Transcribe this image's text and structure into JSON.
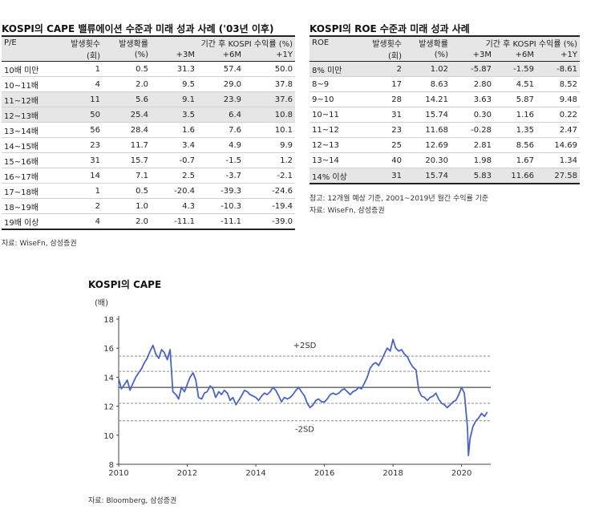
{
  "left_table": {
    "title": "KOSPI의 CAPE 밸류에이션 수준과 미래 성과 사례 ('03년 이후)",
    "headers": {
      "c1": "P/E",
      "c2": "발생횟수",
      "c3": "발생확률",
      "c4": "기간 후 KOSPI 수익률 (%)"
    },
    "subheaders": {
      "c2": "(회)",
      "c3": "(%)",
      "c4": "+3M",
      "c5": "+6M",
      "c6": "+1Y"
    },
    "rows": [
      {
        "label": "10배 미만",
        "count": "1",
        "prob": "0.5",
        "m3": "31.3",
        "m6": "57.4",
        "y1": "50.0",
        "hl": false
      },
      {
        "label": "10~11배",
        "count": "4",
        "prob": "2.0",
        "m3": "9.5",
        "m6": "29.0",
        "y1": "37.8",
        "hl": false
      },
      {
        "label": "11~12배",
        "count": "11",
        "prob": "5.6",
        "m3": "9.1",
        "m6": "23.9",
        "y1": "37.6",
        "hl": true
      },
      {
        "label": "12~13배",
        "count": "50",
        "prob": "25.4",
        "m3": "3.5",
        "m6": "6.4",
        "y1": "10.8",
        "hl": true
      },
      {
        "label": "13~14배",
        "count": "56",
        "prob": "28.4",
        "m3": "1.6",
        "m6": "7.6",
        "y1": "10.1",
        "hl": false
      },
      {
        "label": "14~15배",
        "count": "23",
        "prob": "11.7",
        "m3": "3.4",
        "m6": "4.9",
        "y1": "9.9",
        "hl": false
      },
      {
        "label": "15~16배",
        "count": "31",
        "prob": "15.7",
        "m3": "-0.7",
        "m6": "-1.5",
        "y1": "1.2",
        "hl": false
      },
      {
        "label": "16~17배",
        "count": "14",
        "prob": "7.1",
        "m3": "2.5",
        "m6": "-3.7",
        "y1": "-2.1",
        "hl": false
      },
      {
        "label": "17~18배",
        "count": "1",
        "prob": "0.5",
        "m3": "-20.4",
        "m6": "-39.3",
        "y1": "-24.6",
        "hl": false
      },
      {
        "label": "18~19배",
        "count": "2",
        "prob": "1.0",
        "m3": "4.3",
        "m6": "-10.3",
        "y1": "-19.4",
        "hl": false
      },
      {
        "label": "19배 이상",
        "count": "4",
        "prob": "2.0",
        "m3": "-11.1",
        "m6": "-11.1",
        "y1": "-39.0",
        "hl": false
      }
    ],
    "source": "자료: WiseFn, 삼성증권"
  },
  "right_table": {
    "title": "KOSPI의 ROE 수준과 미래 성과 사례",
    "headers": {
      "c1": "ROE",
      "c2": "발생횟수",
      "c3": "발생확률",
      "c4": "기간 후 KOSPI 수익률 (%)"
    },
    "subheaders": {
      "c2": "(회)",
      "c3": "(%)",
      "c4": "+3M",
      "c5": "+6M",
      "c6": "+1Y"
    },
    "rows": [
      {
        "label": "8% 미만",
        "count": "2",
        "prob": "1.02",
        "m3": "-5.87",
        "m6": "-1.59",
        "y1": "-8.61",
        "hl": true
      },
      {
        "label": "8~9",
        "count": "17",
        "prob": "8.63",
        "m3": "2.80",
        "m6": "4.51",
        "y1": "8.52",
        "hl": false
      },
      {
        "label": "9~10",
        "count": "28",
        "prob": "14.21",
        "m3": "3.63",
        "m6": "5.87",
        "y1": "9.48",
        "hl": false
      },
      {
        "label": "10~11",
        "count": "31",
        "prob": "15.74",
        "m3": "0.30",
        "m6": "1.16",
        "y1": "0.22",
        "hl": false
      },
      {
        "label": "11~12",
        "count": "23",
        "prob": "11.68",
        "m3": "-0.28",
        "m6": "1.35",
        "y1": "2.47",
        "hl": false
      },
      {
        "label": "12~13",
        "count": "25",
        "prob": "12.69",
        "m3": "2.81",
        "m6": "8.56",
        "y1": "14.69",
        "hl": false
      },
      {
        "label": "13~14",
        "count": "40",
        "prob": "20.30",
        "m3": "1.98",
        "m6": "1.67",
        "y1": "1.34",
        "hl": false
      },
      {
        "label": "14% 이상",
        "count": "31",
        "prob": "15.74",
        "m3": "5.83",
        "m6": "11.66",
        "y1": "27.58",
        "hl": true
      }
    ],
    "note": "참고: 12개월 예상 기준, 2001~2019년 월간 수익률 기준",
    "source": "자료: WiseFn, 삼성증권"
  },
  "chart_data": {
    "type": "line",
    "title": "KOSPI의 CAPE",
    "ylabel": "(배)",
    "ylim": [
      8,
      18
    ],
    "yticks": [
      8,
      10,
      12,
      14,
      16,
      18
    ],
    "xlim": [
      2010.0,
      2020.85
    ],
    "xticks": [
      2010,
      2012,
      2014,
      2016,
      2018,
      2020
    ],
    "grid": false,
    "reference_lines": [
      {
        "value": 15.45,
        "style": "dashed",
        "label": "+2SD"
      },
      {
        "value": 14.4,
        "style": "dashed",
        "label": ""
      },
      {
        "value": 13.3,
        "style": "solid",
        "label": ""
      },
      {
        "value": 12.2,
        "style": "dashed",
        "label": ""
      },
      {
        "value": 11.0,
        "style": "dashed",
        "label": "-2SD"
      }
    ],
    "series": [
      {
        "color": "#4a63c8",
        "x": [
          2010.0,
          2010.08,
          2010.17,
          2010.25,
          2010.33,
          2010.42,
          2010.5,
          2010.58,
          2010.67,
          2010.75,
          2010.83,
          2010.92,
          2011.0,
          2011.08,
          2011.17,
          2011.25,
          2011.33,
          2011.42,
          2011.5,
          2011.58,
          2011.67,
          2011.75,
          2011.83,
          2011.92,
          2012.0,
          2012.08,
          2012.17,
          2012.25,
          2012.33,
          2012.42,
          2012.5,
          2012.58,
          2012.67,
          2012.75,
          2012.83,
          2012.92,
          2013.0,
          2013.08,
          2013.17,
          2013.25,
          2013.33,
          2013.42,
          2013.5,
          2013.58,
          2013.67,
          2013.75,
          2013.83,
          2013.92,
          2014.0,
          2014.08,
          2014.17,
          2014.25,
          2014.33,
          2014.42,
          2014.5,
          2014.58,
          2014.67,
          2014.75,
          2014.83,
          2014.92,
          2015.0,
          2015.08,
          2015.17,
          2015.25,
          2015.33,
          2015.42,
          2015.5,
          2015.58,
          2015.67,
          2015.75,
          2015.83,
          2015.92,
          2016.0,
          2016.08,
          2016.17,
          2016.25,
          2016.33,
          2016.42,
          2016.5,
          2016.58,
          2016.67,
          2016.75,
          2016.83,
          2016.92,
          2017.0,
          2017.08,
          2017.17,
          2017.25,
          2017.33,
          2017.42,
          2017.5,
          2017.58,
          2017.67,
          2017.75,
          2017.83,
          2017.92,
          2018.0,
          2018.08,
          2018.17,
          2018.25,
          2018.33,
          2018.42,
          2018.5,
          2018.58,
          2018.67,
          2018.75,
          2018.83,
          2018.92,
          2019.0,
          2019.08,
          2019.17,
          2019.25,
          2019.33,
          2019.42,
          2019.5,
          2019.58,
          2019.67,
          2019.75,
          2019.83,
          2019.92,
          2020.0,
          2020.08,
          2020.17,
          2020.2,
          2020.25,
          2020.33,
          2020.42,
          2020.5,
          2020.58,
          2020.67,
          2020.75
        ],
        "y": [
          13.9,
          13.2,
          13.5,
          13.8,
          13.1,
          13.6,
          14.0,
          14.3,
          14.6,
          15.0,
          15.3,
          15.8,
          16.2,
          15.6,
          15.3,
          15.9,
          15.7,
          15.2,
          15.9,
          13.0,
          12.8,
          12.5,
          13.3,
          13.0,
          13.5,
          14.0,
          14.3,
          13.8,
          12.6,
          12.5,
          12.9,
          13.0,
          13.4,
          13.2,
          12.6,
          13.0,
          12.8,
          13.1,
          12.9,
          12.4,
          12.6,
          12.1,
          12.4,
          12.7,
          13.1,
          13.0,
          12.8,
          12.7,
          12.6,
          12.4,
          12.7,
          12.9,
          12.8,
          13.0,
          13.3,
          13.1,
          12.7,
          12.3,
          12.6,
          12.5,
          12.6,
          12.8,
          13.1,
          13.3,
          13.0,
          12.7,
          12.2,
          11.9,
          12.1,
          12.4,
          12.5,
          12.3,
          12.3,
          12.5,
          12.8,
          12.9,
          12.8,
          12.9,
          13.1,
          13.2,
          13.0,
          12.8,
          13.0,
          13.1,
          13.3,
          13.2,
          13.6,
          14.0,
          14.6,
          14.9,
          15.0,
          14.8,
          15.2,
          15.6,
          16.0,
          15.8,
          16.6,
          16.0,
          15.8,
          15.9,
          15.6,
          15.4,
          15.0,
          14.7,
          14.5,
          13.1,
          12.7,
          12.6,
          12.4,
          12.6,
          12.7,
          12.9,
          12.5,
          12.2,
          12.1,
          11.9,
          12.1,
          12.3,
          12.4,
          12.8,
          13.3,
          12.9,
          10.6,
          8.6,
          9.8,
          10.6,
          11.0,
          11.2,
          11.5,
          11.3,
          11.6
        ]
      }
    ],
    "source": "자료: Bloomberg, 삼성증권"
  }
}
